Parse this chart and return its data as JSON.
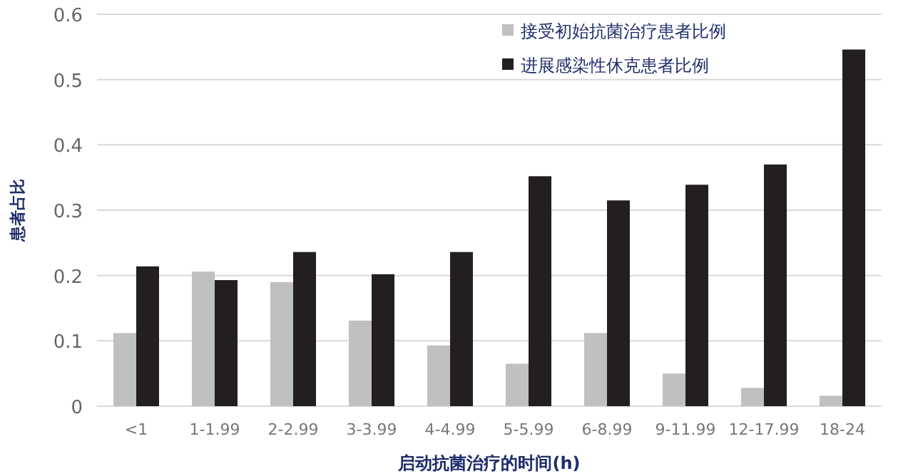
{
  "chart_data": {
    "type": "bar",
    "xlabel": "启动抗菌治疗的时间(h)",
    "ylabel": "患者占比",
    "categories": [
      "<1",
      "1-1.99",
      "2-2.99",
      "3-3.99",
      "4-4.99",
      "5-5.99",
      "6-8.99",
      "9-11.99",
      "12-17.99",
      "18-24"
    ],
    "series": [
      {
        "name": "接受初始抗菌治疗患者比例",
        "color": "#bfc0c2",
        "values": [
          0.112,
          0.206,
          0.19,
          0.131,
          0.093,
          0.065,
          0.112,
          0.05,
          0.028,
          0.016
        ]
      },
      {
        "name": "进展感染性休克患者比例",
        "color": "#231f20",
        "values": [
          0.214,
          0.193,
          0.236,
          0.202,
          0.236,
          0.352,
          0.315,
          0.339,
          0.37,
          0.546
        ]
      }
    ],
    "ylim": [
      0,
      0.6
    ],
    "yticks": [
      0,
      0.1,
      0.2,
      0.3,
      0.4,
      0.5,
      0.6
    ],
    "grid": "y",
    "legend": "top right"
  }
}
